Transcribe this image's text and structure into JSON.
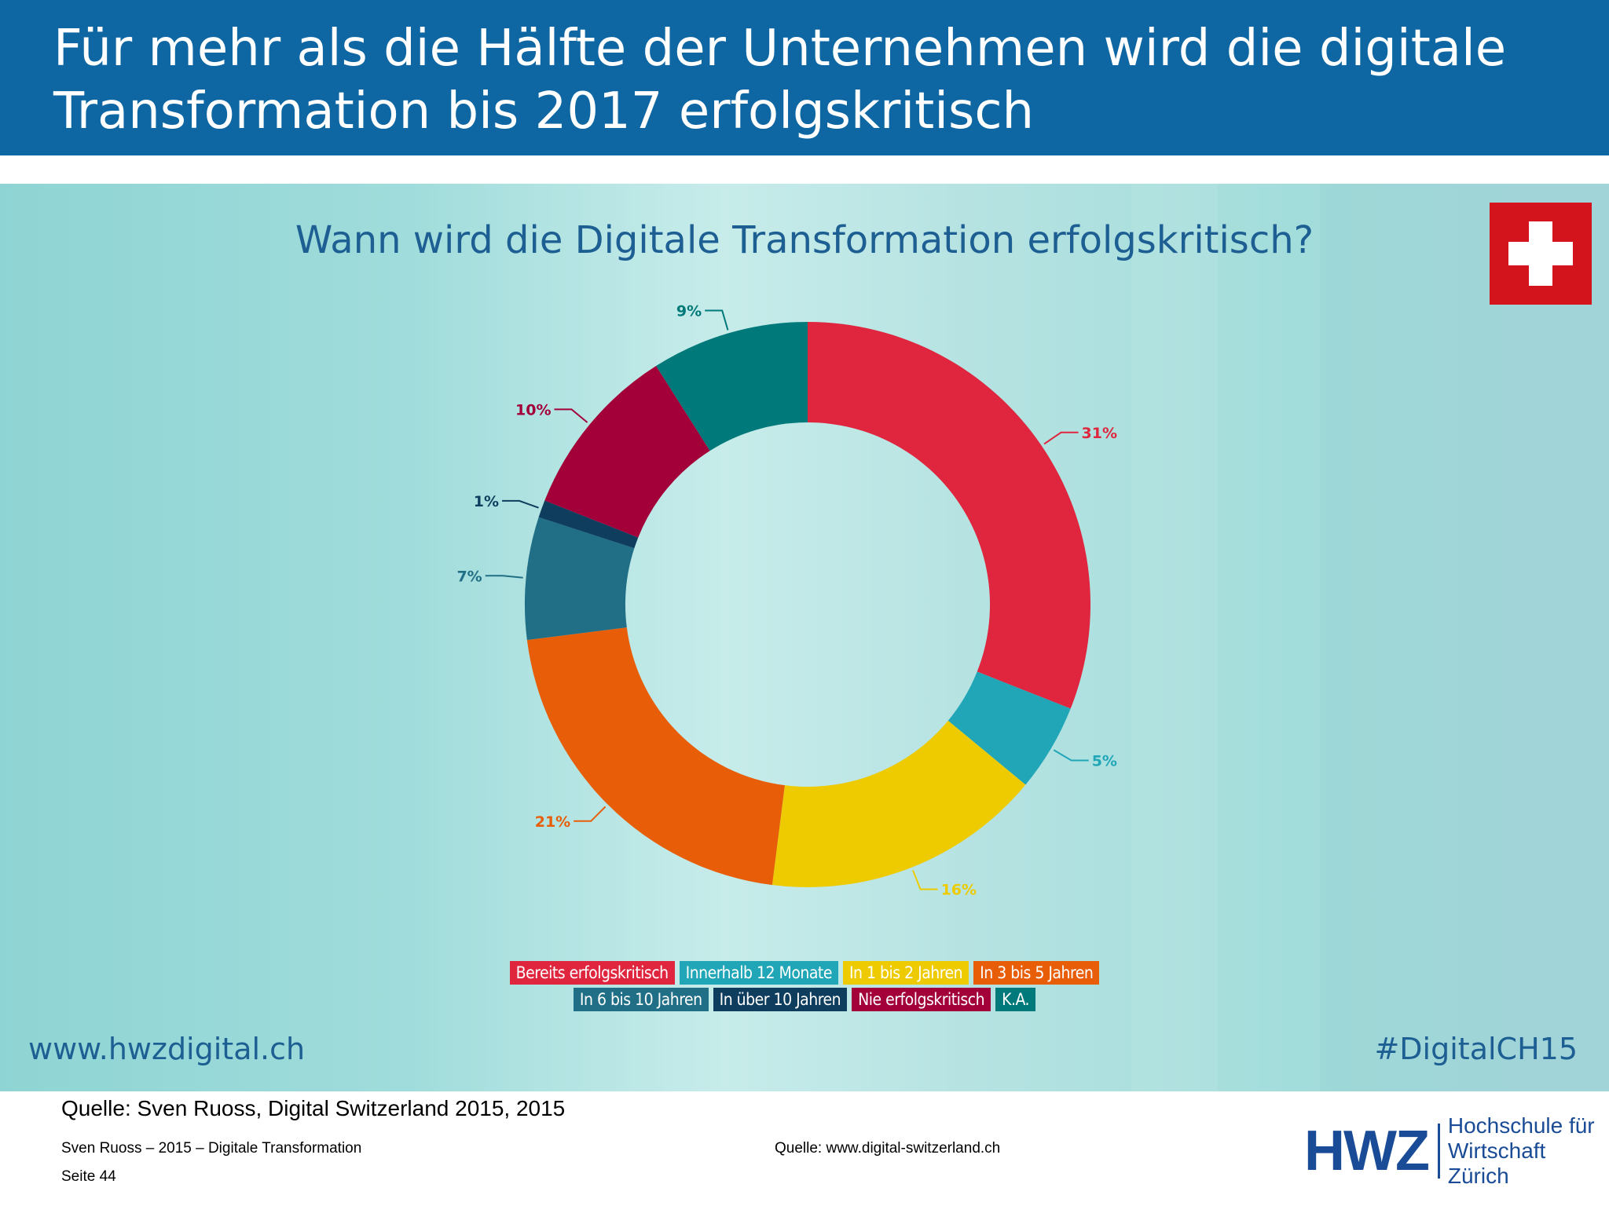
{
  "header": {
    "title": "Für mehr als die Hälfte der Unternehmen wird die digitale\nTransformation bis 2017 erfolgskritisch"
  },
  "chart_data": {
    "type": "pie",
    "title": "Wann wird die Digitale Transformation erfolgskritisch?",
    "donut": true,
    "legend_position": "bottom",
    "categories": [
      "Bereits erfolgskritisch",
      "Innerhalb 12 Monate",
      "In 1 bis 2 Jahren",
      "In 3 bis 5 Jahren",
      "In 6 bis 10 Jahren",
      "In über 10 Jahren",
      "Nie erfolgskritisch",
      "K.A."
    ],
    "values": [
      31,
      5,
      16,
      21,
      7,
      1,
      10,
      9
    ],
    "value_labels": [
      "31%",
      "5%",
      "16%",
      "21%",
      "7%",
      "1%",
      "10%",
      "9%"
    ],
    "colors": [
      "#df263e",
      "#21a6b8",
      "#eecb00",
      "#e85e08",
      "#216f86",
      "#0e3d5e",
      "#a3003a",
      "#00797a"
    ]
  },
  "panel": {
    "url": "www.hwzdigital.ch",
    "hashtag": "#DigitalCH15"
  },
  "footer": {
    "source_main": "Quelle: Sven Ruoss, Digital Switzerland 2015, 2015",
    "author_line": "Sven Ruoss – 2015 – Digitale Transformation",
    "page": "Seite 44",
    "source_url": "Quelle: www.digital-switzerland.ch"
  },
  "logo": {
    "abbr": "HWZ",
    "name": "Hochschule für\nWirtschaft Zürich"
  }
}
